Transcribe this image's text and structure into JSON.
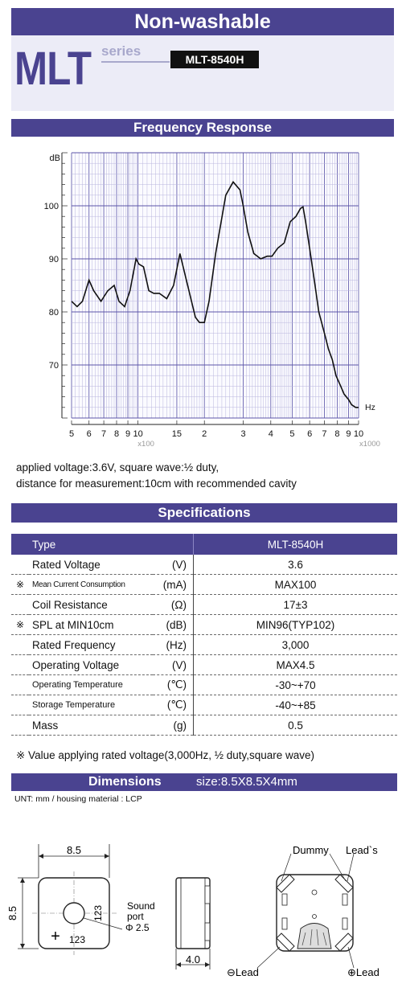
{
  "header": {
    "title": "Non-washable",
    "series_big": "MLT",
    "series_word": "series",
    "model": "MLT-8540H"
  },
  "frequency": {
    "section_title": "Frequency Response",
    "note_line1": "applied voltage:3.6V, square wave:½ duty,",
    "note_line2": "distance for measurement:10cm with recommended cavity"
  },
  "chart_data": {
    "type": "line",
    "x_scale": "log",
    "xlim": [
      500,
      10000
    ],
    "ylim": [
      60,
      110
    ],
    "ylabel": "dB",
    "xunit": "Hz",
    "x_multiplier_labels": [
      "x100",
      "x1000"
    ],
    "x_tick_labels": [
      "5",
      "6",
      "7",
      "8",
      "9",
      "10",
      "15",
      "2",
      "3",
      "4",
      "5",
      "6",
      "7",
      "8",
      "9",
      "10"
    ],
    "y_tick_labels": [
      "70",
      "80",
      "90",
      "100"
    ],
    "grid": true,
    "series": [
      {
        "x": [
          500,
          530,
          560,
          600,
          630,
          680,
          730,
          780,
          820,
          870,
          920,
          980,
          1010,
          1060,
          1120,
          1180,
          1250,
          1350,
          1450,
          1550,
          1680,
          1820,
          1900,
          2000,
          2100,
          2250,
          2500,
          2700,
          2900,
          3000,
          3150,
          3350,
          3600,
          3850,
          4050,
          4300,
          4600,
          4900,
          5200,
          5450,
          5600,
          5750,
          6000,
          6300,
          6600,
          7000,
          7300,
          7600,
          7900,
          8300,
          8600,
          9000,
          9300,
          9700,
          10000
        ],
        "y": [
          82,
          81,
          82,
          86,
          84,
          82,
          84,
          85,
          82,
          81,
          84,
          90,
          89,
          88.5,
          84,
          83.5,
          83.5,
          82.5,
          85,
          91,
          85,
          79,
          78,
          78,
          82,
          91,
          102,
          104.5,
          103,
          100,
          95,
          91,
          90,
          90.5,
          90.5,
          92,
          93,
          97,
          98,
          99.5,
          99.8,
          97,
          92,
          86,
          80,
          76,
          73,
          71,
          68,
          66,
          64.5,
          63.5,
          62.5,
          62,
          62
        ]
      }
    ]
  },
  "specs": {
    "section_title": "Specifications",
    "header": {
      "type": "Type",
      "value": "MLT-8540H"
    },
    "rows": [
      {
        "mark": "",
        "name": "Rated Voltage",
        "unit": "(V)",
        "value": "3.6"
      },
      {
        "mark": "※",
        "name": "Mean Current Consumption",
        "unit": "(mA)",
        "value": "MAX100"
      },
      {
        "mark": "",
        "name": "Coil Resistance",
        "unit": "(Ω)",
        "value": "17±3"
      },
      {
        "mark": "※",
        "name": "SPL at MIN10cm",
        "unit": "(dB)",
        "value": "MIN96(TYP102)"
      },
      {
        "mark": "",
        "name": "Rated Frequency",
        "unit": "(Hz)",
        "value": "3,000"
      },
      {
        "mark": "",
        "name": "Operating Voltage",
        "unit": "(V)",
        "value": "MAX4.5"
      },
      {
        "mark": "",
        "name": "Operating Temperature",
        "unit": "(℃)",
        "value": "-30~+70"
      },
      {
        "mark": "",
        "name": "Storage Temperature",
        "unit": "(℃)",
        "value": "-40~+85"
      },
      {
        "mark": "",
        "name": "Mass",
        "unit": "(g)",
        "value": "0.5"
      }
    ],
    "footnote": "※ Value applying rated voltage(3,000Hz, ½ duty,square wave)"
  },
  "dimensions": {
    "section_title": "Dimensions",
    "size_text": "size:8.5X8.5X4mm",
    "unit_line": "UNT: mm  /  housing material : LCP",
    "width_label": "8.5",
    "height_label": "8.5",
    "mark_text": "123",
    "plus_mark": "+",
    "sound_port_label1": "Sound",
    "sound_port_label2": "port",
    "sound_port_dia": "Φ 2.5",
    "thickness_label": "4.0",
    "dummy_label": "Dummy",
    "leads_label": "Lead`s",
    "minus_lead": "⊖Lead",
    "plus_lead": "⊕Lead"
  },
  "colors": {
    "band": "#4a4390",
    "grid_major": "#5c56a8",
    "grid_minor": "#b9b6de",
    "light_bg": "#ececf7"
  }
}
